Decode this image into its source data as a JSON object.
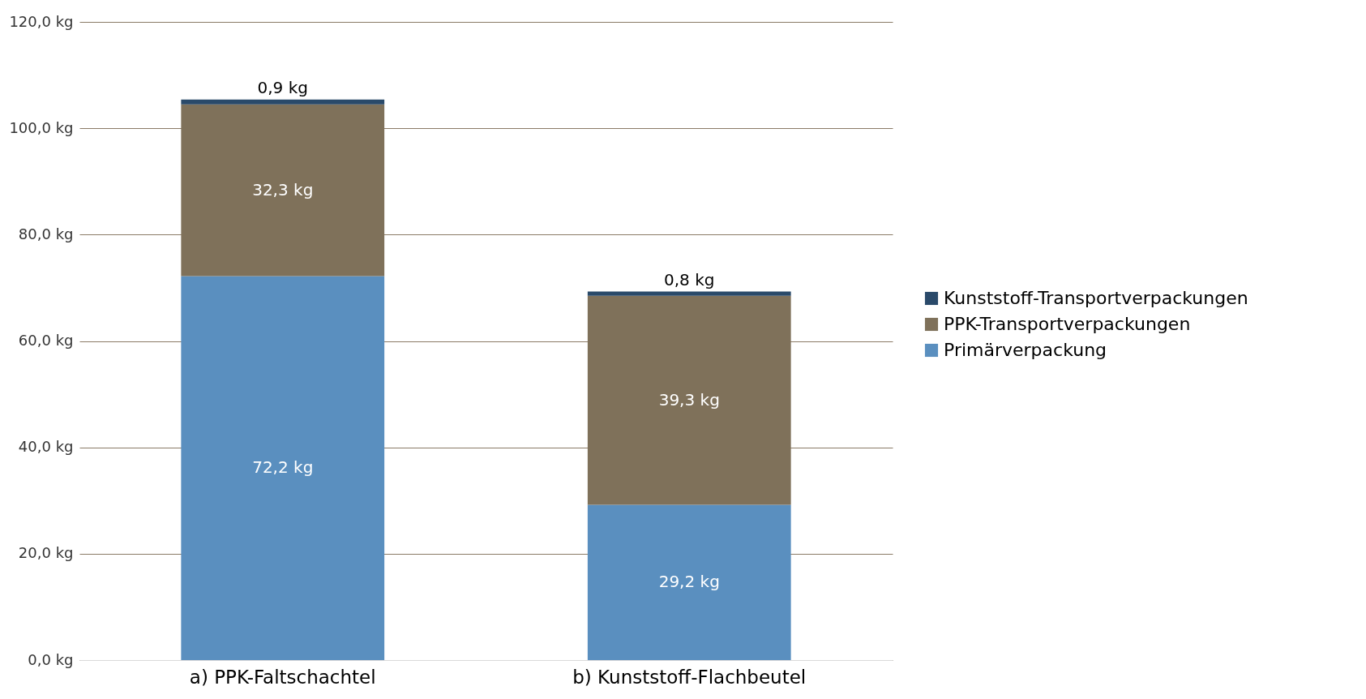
{
  "chart_data": {
    "type": "bar",
    "stacked": true,
    "categories": [
      "a) PPK-Faltschachtel",
      "b) Kunststoff-Flachbeutel"
    ],
    "series": [
      {
        "name": "Primärverpackung",
        "color": "#5a8fbf",
        "values": [
          72.2,
          29.2
        ],
        "value_labels": [
          "72,2 kg",
          "29,2 kg"
        ]
      },
      {
        "name": "PPK-Transportverpackungen",
        "color": "#7f715a",
        "values": [
          32.3,
          39.3
        ],
        "value_labels": [
          "32,3 kg",
          "39,3 kg"
        ]
      },
      {
        "name": "Kunststoff-Transportverpackungen",
        "color": "#2a4a6a",
        "values": [
          0.9,
          0.8
        ],
        "value_labels": [
          "0,9 kg",
          "0,8 kg"
        ]
      }
    ],
    "ylim": [
      0,
      120
    ],
    "yticks": [
      {
        "value": 0,
        "label": "0,0 kg"
      },
      {
        "value": 20,
        "label": "20,0 kg"
      },
      {
        "value": 40,
        "label": "40,0 kg"
      },
      {
        "value": 60,
        "label": "60,0 kg"
      },
      {
        "value": 80,
        "label": "80,0 kg"
      },
      {
        "value": 100,
        "label": "100,0 kg"
      },
      {
        "value": 120,
        "label": "120,0 kg"
      }
    ],
    "grid": "y",
    "legend": "right"
  }
}
